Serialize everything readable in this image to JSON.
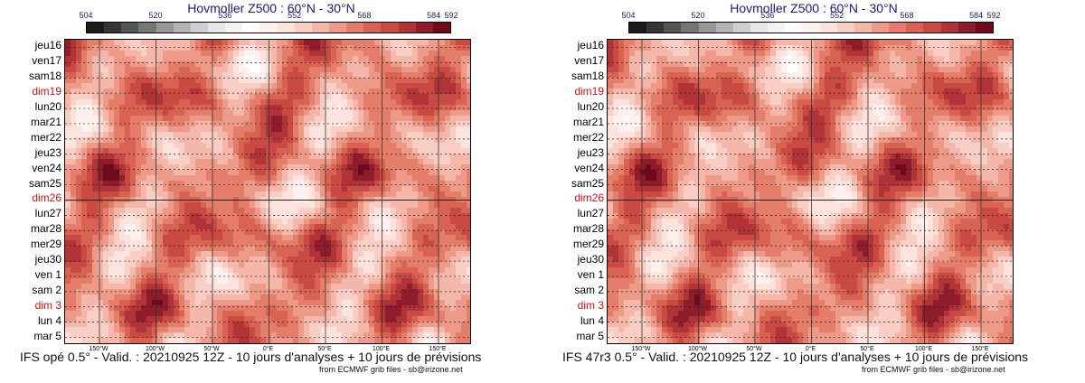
{
  "chart_data": [
    {
      "type": "heatmap",
      "title": "Hovmoller Z500 : 60°N - 30°N",
      "colorbar": {
        "tick_labels": [
          "504",
          "520",
          "536",
          "552",
          "568",
          "584",
          "592"
        ],
        "colors": [
          "#1a1a1a",
          "#363636",
          "#555555",
          "#767676",
          "#989898",
          "#b4b4b4",
          "#cfcfcf",
          "#e6e6e6",
          "#f4f4f4",
          "#ffffff",
          "#fff1ef",
          "#fde3dd",
          "#f9cfc5",
          "#f4b7a9",
          "#ee9a88",
          "#e47e6b",
          "#d86352",
          "#c94a42",
          "#b03338",
          "#8f1c2a",
          "#6e0a1c"
        ]
      },
      "y_tick_labels": [
        "jeu16",
        "ven17",
        "sam18",
        "dim19",
        "lun20",
        "mar21",
        "mer22",
        "jeu23",
        "ven24",
        "sam25",
        "dim26",
        "lun27",
        "mar28",
        "mer29",
        "jeu30",
        "ven 1",
        "sam 2",
        "dim 3",
        "lun 4",
        "mar 5"
      ],
      "y_red_labels": [
        "dim19",
        "dim26",
        "dim 3"
      ],
      "x_tick_labels": [
        "150°W",
        "100°W",
        "50°W",
        "0°E",
        "50°E",
        "100°E",
        "150°E"
      ],
      "footer": "IFS opé 0.5° - Valid. : 20210925 12Z - 10 jours d'analyses + 10 jours de prévisions",
      "credit": "from ECMWF grib files - sb@irizone.net"
    },
    {
      "type": "heatmap",
      "title": "Hovmoller Z500 : 60°N - 30°N",
      "colorbar": {
        "tick_labels": [
          "504",
          "520",
          "536",
          "552",
          "568",
          "584",
          "592"
        ],
        "colors": [
          "#1a1a1a",
          "#363636",
          "#555555",
          "#767676",
          "#989898",
          "#b4b4b4",
          "#cfcfcf",
          "#e6e6e6",
          "#f4f4f4",
          "#ffffff",
          "#fff1ef",
          "#fde3dd",
          "#f9cfc5",
          "#f4b7a9",
          "#ee9a88",
          "#e47e6b",
          "#d86352",
          "#c94a42",
          "#b03338",
          "#8f1c2a",
          "#6e0a1c"
        ]
      },
      "y_tick_labels": [
        "jeu16",
        "ven17",
        "sam18",
        "dim19",
        "lun20",
        "mar21",
        "mer22",
        "jeu23",
        "ven24",
        "sam25",
        "dim26",
        "lun27",
        "mar28",
        "mer29",
        "jeu30",
        "ven 1",
        "sam 2",
        "dim 3",
        "lun 4",
        "mar 5"
      ],
      "y_red_labels": [
        "dim19",
        "dim26",
        "dim 3"
      ],
      "x_tick_labels": [
        "150°W",
        "100°W",
        "50°W",
        "0°E",
        "50°E",
        "100°E",
        "150°E"
      ],
      "footer": "IFS 47r3 0.5° - Valid. : 20210925 12Z - 10 jours d'analyses + 10 jours de prévisions",
      "credit": "from ECMWF grib files - sb@irizone.net"
    }
  ]
}
